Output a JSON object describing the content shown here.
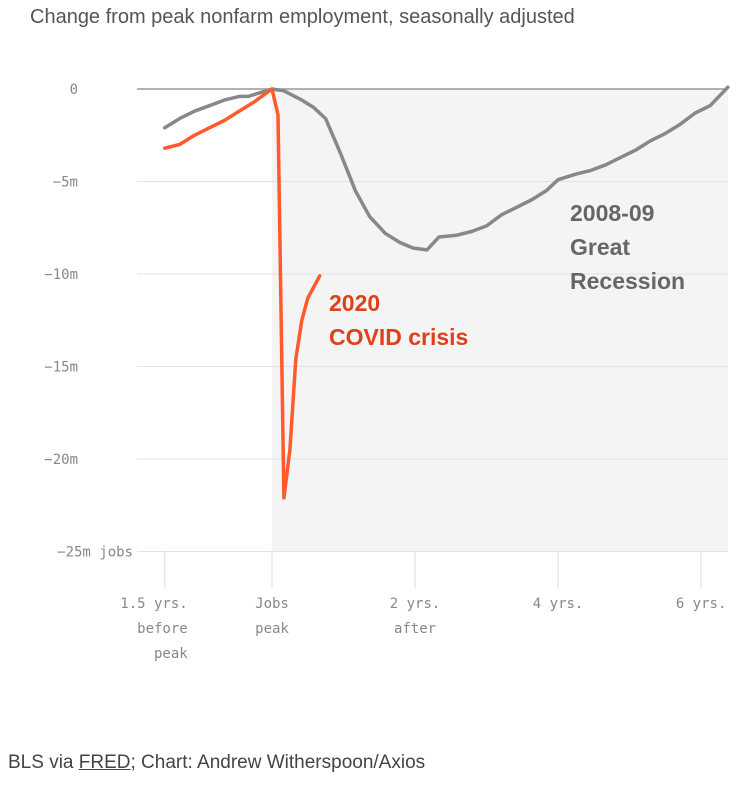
{
  "title": "Change from peak nonfarm employment, seasonally adjusted",
  "source": {
    "prefix": "BLS via ",
    "link": "FRED",
    "suffix": "; Chart: Andrew Witherspoon/Axios"
  },
  "chart_data": {
    "type": "line",
    "title": "Change from peak nonfarm employment, seasonally adjusted",
    "xlabel": "",
    "ylabel": "",
    "x_unit": "months relative to jobs peak",
    "xlim": [
      -18,
      77
    ],
    "ylim": [
      -25,
      0
    ],
    "y_ticks": [
      {
        "v": 0,
        "label": "0"
      },
      {
        "v": -5,
        "label": "−5m"
      },
      {
        "v": -10,
        "label": "−10m"
      },
      {
        "v": -15,
        "label": "−15m"
      },
      {
        "v": -20,
        "label": "−20m"
      },
      {
        "v": -25,
        "label": "−25m jobs"
      }
    ],
    "x_ticks": [
      {
        "v": -18,
        "label": [
          "1.5 yrs.",
          "before",
          "peak"
        ]
      },
      {
        "v": 0,
        "label": [
          "Jobs",
          "peak"
        ]
      },
      {
        "v": 24,
        "label": [
          "2 yrs.",
          "after"
        ]
      },
      {
        "v": 48,
        "label": [
          "4 yrs."
        ]
      },
      {
        "v": 72,
        "label": [
          "6 yrs."
        ]
      }
    ],
    "grid": true,
    "shaded_region": {
      "from": 0,
      "to": 77,
      "color": "#f4f4f4"
    },
    "series": [
      {
        "name": "2008-09 Great Recession",
        "label_lines": [
          "2008-09",
          "Great",
          "Recession"
        ],
        "color": "#888888",
        "label_color": "#666666",
        "x": [
          -18,
          -15.5,
          -13,
          -10.5,
          -8,
          -5.5,
          -4,
          -2,
          0,
          2,
          5,
          7,
          9,
          11.4,
          14,
          16.4,
          19,
          21.5,
          23.7,
          26,
          28,
          31,
          33.5,
          36,
          38.5,
          41,
          43.5,
          46,
          48,
          51,
          53.5,
          56,
          58.5,
          61,
          63.5,
          66,
          68.5,
          71,
          73.5,
          75,
          76.5
        ],
        "y": [
          -2.1,
          -1.6,
          -1.2,
          -0.9,
          -0.6,
          -0.4,
          -0.4,
          -0.2,
          0,
          -0.1,
          -0.6,
          -1.0,
          -1.6,
          -3.4,
          -5.5,
          -6.9,
          -7.8,
          -8.3,
          -8.6,
          -8.7,
          -8.0,
          -7.9,
          -7.7,
          -7.4,
          -6.8,
          -6.4,
          -6.0,
          -5.5,
          -4.9,
          -4.6,
          -4.4,
          -4.1,
          -3.7,
          -3.3,
          -2.8,
          -2.4,
          -1.9,
          -1.3,
          -0.9,
          -0.4,
          0.1
        ]
      },
      {
        "name": "2020 COVID crisis",
        "label_lines": [
          "2020",
          "COVID crisis"
        ],
        "color": "#ff5a2c",
        "label_color": "#e0401a",
        "x": [
          -18,
          -15.5,
          -13,
          -10.5,
          -8,
          -5.5,
          -3,
          0,
          1,
          2,
          3,
          4,
          5,
          6,
          8
        ],
        "y": [
          -3.2,
          -3.0,
          -2.5,
          -2.1,
          -1.7,
          -1.2,
          -0.7,
          0,
          -1.4,
          -22.1,
          -19.5,
          -14.6,
          -12.5,
          -11.3,
          -10.1
        ]
      }
    ]
  }
}
